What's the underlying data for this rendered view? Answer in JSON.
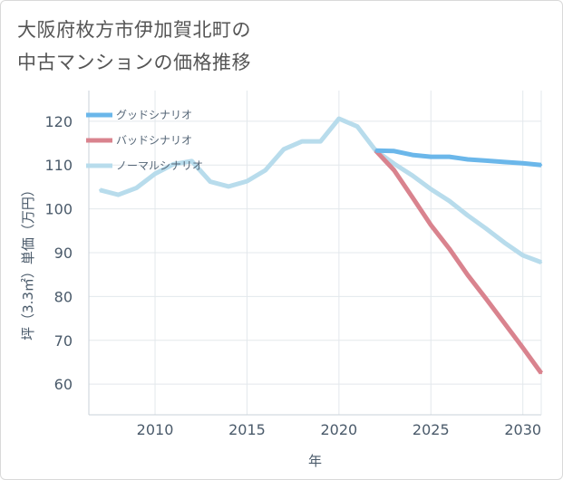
{
  "page": {
    "title_lines": [
      "大阪府枚方市伊加賀北町の",
      "中古マンションの価格推移"
    ]
  },
  "chart_data": {
    "type": "line",
    "title": "大阪府枚方市伊加賀北町の中古マンションの価格推移",
    "xlabel": "年",
    "ylabel": "坪（3.3㎡）単価（万円）",
    "xlim": [
      2006.4,
      2031
    ],
    "ylim": [
      53,
      127
    ],
    "xticks": [
      2010,
      2015,
      2020,
      2025,
      2030
    ],
    "yticks": [
      60,
      70,
      80,
      90,
      100,
      110,
      120
    ],
    "grid": true,
    "legend_position": "top-left",
    "series": [
      {
        "name": "グッドシナリオ",
        "color": "#6bb7ea",
        "x": [
          2022,
          2023,
          2024,
          2025,
          2026,
          2027,
          2028,
          2029,
          2030,
          2031
        ],
        "y": [
          113.3,
          113.2,
          112.3,
          111.9,
          111.9,
          111.3,
          111.0,
          110.7,
          110.4,
          110.0
        ]
      },
      {
        "name": "バッドシナリオ",
        "color": "#d9838e",
        "x": [
          2022,
          2023,
          2024,
          2025,
          2026,
          2027,
          2028,
          2029,
          2030,
          2031
        ],
        "y": [
          113.3,
          108.8,
          102.6,
          96.3,
          90.9,
          84.9,
          79.5,
          73.9,
          68.3,
          62.5
        ]
      },
      {
        "name": "ノーマルシナリオ",
        "color": "#b8dcec",
        "x": [
          2007,
          2008,
          2009,
          2010,
          2011,
          2012,
          2013,
          2014,
          2015,
          2016,
          2017,
          2018,
          2019,
          2020,
          2021,
          2022,
          2023,
          2024,
          2025,
          2026,
          2027,
          2028,
          2029,
          2030,
          2031
        ],
        "y": [
          104.3,
          103.2,
          104.8,
          108.0,
          110.2,
          110.9,
          106.2,
          105.1,
          106.3,
          108.8,
          113.6,
          115.4,
          115.4,
          120.6,
          118.8,
          113.3,
          110.3,
          107.6,
          104.5,
          101.8,
          98.5,
          95.5,
          92.3,
          89.4,
          87.8
        ]
      }
    ]
  }
}
